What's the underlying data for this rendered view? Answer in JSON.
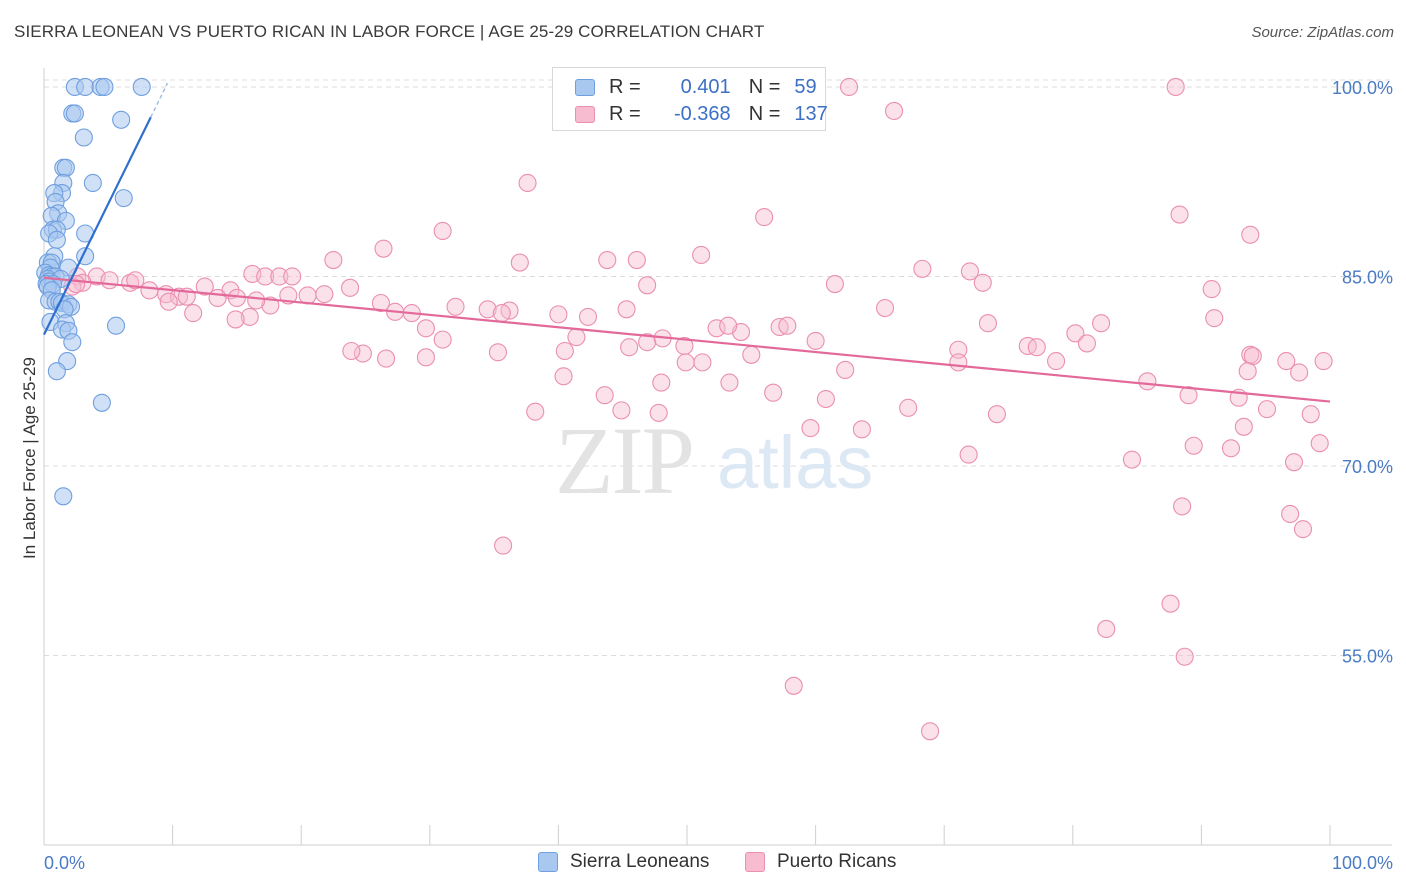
{
  "title": "SIERRA LEONEAN VS PUERTO RICAN IN LABOR FORCE | AGE 25-29 CORRELATION CHART",
  "source": "Source: ZipAtlas.com",
  "watermark": {
    "zip": "ZIP",
    "atlas": "atlas"
  },
  "legend": {
    "rows": [
      {
        "r_label": "R =",
        "r_value": "0.401",
        "n_label": "N =",
        "n_value": "59"
      },
      {
        "r_label": "R =",
        "r_value": "-0.368",
        "n_label": "N =",
        "n_value": "137"
      }
    ]
  },
  "bottom_legend": {
    "sierra": "Sierra Leoneans",
    "puerto": "Puerto Ricans"
  },
  "colors": {
    "blue_fill": "#a9c8f0",
    "blue_stroke": "#6f9fdf",
    "blue_line": "#2f6fce",
    "pink_fill": "#f7bcd0",
    "pink_stroke": "#ea8fb0",
    "pink_line": "#e3699a",
    "grid": "#dcdcdc",
    "tick_text": "#4a7bc4"
  },
  "chart_data": {
    "type": "scatter",
    "title": "SIERRA LEONEAN VS PUERTO RICAN IN LABOR FORCE | AGE 25-29 CORRELATION CHART",
    "xlabel": "",
    "ylabel": "In Labor Force | Age 25-29",
    "xlim": [
      0,
      100
    ],
    "ylim": [
      40,
      101.5
    ],
    "x_tick_labels": [
      "0.0%",
      "100.0%"
    ],
    "y_ticks": [
      55,
      70,
      85,
      100
    ],
    "y_tick_labels": [
      "55.0%",
      "70.0%",
      "85.0%",
      "100.0%"
    ],
    "series": [
      {
        "name": "Sierra Leoneans",
        "r": 0.401,
        "n": 59,
        "trend": {
          "x0": 0.0,
          "y0": 80.4,
          "x1": 8.3,
          "y1": 97.6,
          "dash_x1": 9.6
        },
        "points": [
          [
            2.4,
            100.0
          ],
          [
            3.2,
            100.0
          ],
          [
            4.4,
            100.0
          ],
          [
            4.7,
            100.0
          ],
          [
            7.6,
            100.0
          ],
          [
            2.2,
            97.9
          ],
          [
            2.4,
            97.9
          ],
          [
            6.0,
            97.4
          ],
          [
            3.1,
            96.0
          ],
          [
            1.5,
            93.6
          ],
          [
            1.7,
            93.6
          ],
          [
            1.5,
            92.4
          ],
          [
            3.8,
            92.4
          ],
          [
            1.4,
            91.6
          ],
          [
            0.8,
            91.6
          ],
          [
            6.2,
            91.2
          ],
          [
            0.9,
            90.9
          ],
          [
            1.1,
            90.0
          ],
          [
            0.6,
            89.8
          ],
          [
            1.7,
            89.4
          ],
          [
            0.7,
            88.7
          ],
          [
            1.0,
            88.7
          ],
          [
            0.4,
            88.4
          ],
          [
            3.2,
            88.4
          ],
          [
            1.0,
            87.9
          ],
          [
            0.8,
            86.6
          ],
          [
            3.2,
            86.6
          ],
          [
            0.3,
            86.1
          ],
          [
            0.6,
            86.1
          ],
          [
            0.5,
            85.7
          ],
          [
            1.9,
            85.7
          ],
          [
            0.1,
            85.3
          ],
          [
            0.4,
            85.1
          ],
          [
            0.6,
            85.0
          ],
          [
            0.9,
            85.0
          ],
          [
            0.3,
            84.8
          ],
          [
            0.4,
            84.6
          ],
          [
            1.3,
            84.8
          ],
          [
            0.2,
            84.4
          ],
          [
            0.7,
            84.4
          ],
          [
            0.3,
            84.2
          ],
          [
            0.6,
            83.9
          ],
          [
            0.4,
            83.1
          ],
          [
            0.9,
            83.0
          ],
          [
            1.2,
            83.0
          ],
          [
            1.4,
            82.9
          ],
          [
            1.9,
            82.8
          ],
          [
            2.1,
            82.6
          ],
          [
            1.6,
            82.4
          ],
          [
            0.5,
            81.4
          ],
          [
            1.7,
            81.3
          ],
          [
            5.6,
            81.1
          ],
          [
            1.4,
            80.8
          ],
          [
            1.9,
            80.7
          ],
          [
            2.2,
            79.8
          ],
          [
            1.8,
            78.3
          ],
          [
            1.0,
            77.5
          ],
          [
            4.5,
            75.0
          ],
          [
            1.5,
            67.6
          ]
        ]
      },
      {
        "name": "Puerto Ricans",
        "r": -0.368,
        "n": 137,
        "trend": {
          "x0": 0.0,
          "y0": 84.9,
          "x1": 100.0,
          "y1": 75.1
        },
        "points": [
          [
            46.4,
            100.0
          ],
          [
            49.3,
            100.0
          ],
          [
            62.6,
            100.0
          ],
          [
            88.0,
            100.0
          ],
          [
            44.0,
            100.0
          ],
          [
            66.1,
            98.1
          ],
          [
            37.6,
            92.4
          ],
          [
            56.0,
            89.7
          ],
          [
            88.3,
            89.9
          ],
          [
            93.8,
            88.3
          ],
          [
            26.4,
            87.2
          ],
          [
            31.0,
            88.6
          ],
          [
            43.8,
            86.3
          ],
          [
            46.1,
            86.3
          ],
          [
            51.1,
            86.7
          ],
          [
            22.5,
            86.3
          ],
          [
            37.0,
            86.1
          ],
          [
            68.3,
            85.6
          ],
          [
            72.0,
            85.4
          ],
          [
            16.2,
            85.2
          ],
          [
            17.2,
            85.0
          ],
          [
            18.3,
            85.0
          ],
          [
            19.3,
            85.0
          ],
          [
            2.6,
            85.0
          ],
          [
            4.1,
            85.0
          ],
          [
            5.1,
            84.7
          ],
          [
            6.7,
            84.5
          ],
          [
            7.1,
            84.7
          ],
          [
            3.0,
            84.5
          ],
          [
            2.2,
            84.2
          ],
          [
            2.5,
            84.4
          ],
          [
            46.9,
            84.3
          ],
          [
            61.5,
            84.4
          ],
          [
            73.0,
            84.5
          ],
          [
            12.5,
            84.2
          ],
          [
            14.5,
            83.9
          ],
          [
            23.8,
            84.1
          ],
          [
            8.2,
            83.9
          ],
          [
            9.5,
            83.6
          ],
          [
            10.5,
            83.4
          ],
          [
            11.1,
            83.4
          ],
          [
            13.5,
            83.3
          ],
          [
            15.0,
            83.3
          ],
          [
            19.0,
            83.5
          ],
          [
            20.5,
            83.5
          ],
          [
            21.8,
            83.6
          ],
          [
            90.8,
            84.0
          ],
          [
            17.6,
            82.7
          ],
          [
            9.7,
            83.0
          ],
          [
            16.5,
            83.1
          ],
          [
            26.2,
            82.9
          ],
          [
            32.0,
            82.6
          ],
          [
            34.5,
            82.4
          ],
          [
            36.2,
            82.3
          ],
          [
            27.3,
            82.2
          ],
          [
            28.6,
            82.1
          ],
          [
            35.6,
            82.1
          ],
          [
            40.0,
            82.0
          ],
          [
            45.3,
            82.4
          ],
          [
            65.4,
            82.5
          ],
          [
            16.0,
            81.8
          ],
          [
            14.9,
            81.6
          ],
          [
            11.6,
            82.1
          ],
          [
            42.3,
            81.8
          ],
          [
            73.4,
            81.3
          ],
          [
            82.2,
            81.3
          ],
          [
            91.0,
            81.7
          ],
          [
            54.2,
            80.6
          ],
          [
            57.2,
            81.0
          ],
          [
            57.8,
            81.1
          ],
          [
            52.3,
            80.9
          ],
          [
            53.2,
            81.1
          ],
          [
            60.0,
            79.9
          ],
          [
            29.7,
            80.9
          ],
          [
            31.0,
            80.0
          ],
          [
            41.4,
            80.2
          ],
          [
            46.9,
            79.8
          ],
          [
            48.1,
            80.1
          ],
          [
            76.5,
            79.5
          ],
          [
            80.2,
            80.5
          ],
          [
            29.7,
            78.6
          ],
          [
            40.5,
            79.1
          ],
          [
            45.5,
            79.4
          ],
          [
            49.8,
            79.5
          ],
          [
            51.2,
            78.2
          ],
          [
            71.1,
            79.2
          ],
          [
            77.2,
            79.4
          ],
          [
            93.8,
            78.8
          ],
          [
            35.3,
            79.0
          ],
          [
            24.8,
            78.9
          ],
          [
            23.9,
            79.1
          ],
          [
            26.6,
            78.5
          ],
          [
            49.9,
            78.2
          ],
          [
            94.0,
            78.7
          ],
          [
            99.5,
            78.3
          ],
          [
            71.1,
            78.2
          ],
          [
            78.7,
            78.3
          ],
          [
            97.6,
            77.4
          ],
          [
            96.6,
            78.3
          ],
          [
            93.6,
            77.5
          ],
          [
            85.8,
            76.7
          ],
          [
            40.4,
            77.1
          ],
          [
            43.6,
            75.6
          ],
          [
            48.0,
            76.6
          ],
          [
            53.3,
            76.6
          ],
          [
            56.7,
            75.8
          ],
          [
            60.8,
            75.3
          ],
          [
            89.0,
            75.6
          ],
          [
            92.9,
            75.4
          ],
          [
            95.1,
            74.5
          ],
          [
            98.5,
            74.1
          ],
          [
            38.2,
            74.3
          ],
          [
            44.9,
            74.4
          ],
          [
            47.8,
            74.2
          ],
          [
            93.3,
            73.1
          ],
          [
            59.6,
            73.0
          ],
          [
            74.1,
            74.1
          ],
          [
            89.4,
            71.6
          ],
          [
            92.3,
            71.4
          ],
          [
            99.2,
            71.8
          ],
          [
            97.2,
            70.3
          ],
          [
            71.9,
            70.9
          ],
          [
            84.6,
            70.5
          ],
          [
            88.5,
            66.8
          ],
          [
            96.9,
            66.2
          ],
          [
            97.9,
            65.0
          ],
          [
            35.7,
            63.7
          ],
          [
            87.6,
            59.1
          ],
          [
            82.6,
            57.1
          ],
          [
            88.7,
            54.9
          ],
          [
            58.3,
            52.6
          ],
          [
            68.9,
            49.0
          ],
          [
            62.3,
            77.6
          ],
          [
            55.0,
            78.8
          ],
          [
            67.2,
            74.6
          ],
          [
            63.6,
            72.9
          ],
          [
            81.1,
            79.7
          ]
        ]
      }
    ]
  }
}
